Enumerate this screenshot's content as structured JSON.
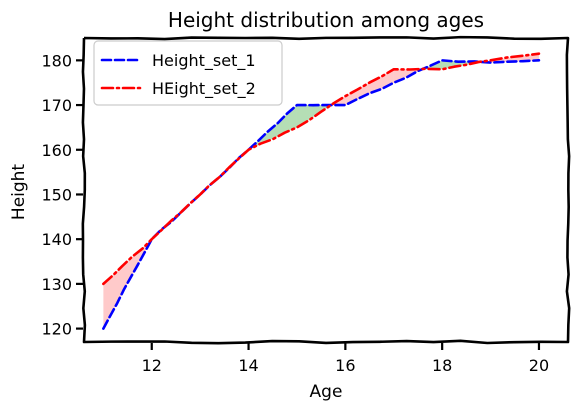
{
  "chart_data": {
    "type": "line",
    "title": "Height distribution among ages",
    "xlabel": "Age",
    "ylabel": "Height",
    "x": [
      11,
      12,
      13,
      14,
      15,
      16,
      17,
      18,
      19,
      20
    ],
    "xlim": [
      10.6,
      20.6
    ],
    "ylim": [
      117,
      185
    ],
    "xticks": [
      12,
      14,
      16,
      18,
      20
    ],
    "yticks": [
      120,
      130,
      140,
      150,
      160,
      170,
      180
    ],
    "grid": false,
    "legend_position": "top-left",
    "series": [
      {
        "name": "Height_set_1",
        "values": [
          120,
          140,
          150,
          160,
          170,
          170,
          175,
          180,
          179.5,
          180
        ],
        "color": "#0000ff",
        "dash": "dashed"
      },
      {
        "name": "HEight_set_2",
        "values": [
          130,
          140,
          150,
          160,
          165,
          172,
          178,
          178,
          180,
          181.5
        ],
        "color": "#ff0000",
        "dash": "dashdot"
      }
    ],
    "fill_colors": {
      "set1_above": "#2ca02c",
      "set2_above": "#ff6666"
    }
  }
}
